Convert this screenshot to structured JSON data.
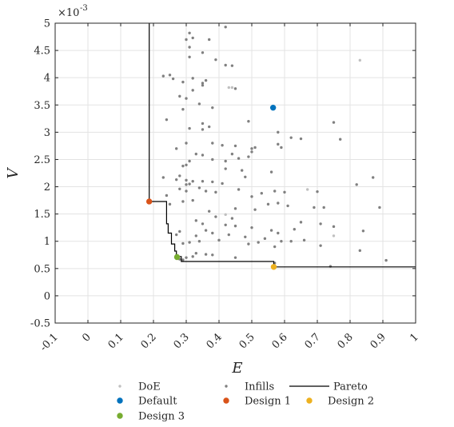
{
  "chart_data": {
    "type": "scatter",
    "xlabel": "E",
    "ylabel": "V",
    "y_multiplier": "×10",
    "y_exponent": "-3",
    "xlim": [
      -0.1,
      1.0
    ],
    "ylim": [
      -0.5,
      5.0
    ],
    "x_ticks": [
      -0.1,
      0,
      0.1,
      0.2,
      0.3,
      0.4,
      0.5,
      0.6,
      0.7,
      0.8,
      0.9,
      1
    ],
    "x_tick_labels": [
      "-0.1",
      "0",
      "0.1",
      "0.2",
      "0.3",
      "0.4",
      "0.5",
      "0.6",
      "0.7",
      "0.8",
      "0.9",
      "1"
    ],
    "y_ticks": [
      -0.5,
      0,
      0.5,
      1,
      1.5,
      2,
      2.5,
      3,
      3.5,
      4,
      4.5,
      5
    ],
    "y_tick_labels": [
      "-0.5",
      "0",
      "0.5",
      "1",
      "1.5",
      "2",
      "2.5",
      "3",
      "3.5",
      "4",
      "4.5",
      "5"
    ],
    "grid": true,
    "legend_position": "bottom",
    "legend": [
      {
        "label": "DoE",
        "marker": "dot-small",
        "color": "#c0c0c0"
      },
      {
        "label": "Infills",
        "marker": "dot-small",
        "color": "#808080"
      },
      {
        "label": "Pareto",
        "marker": "line",
        "color": "#000000"
      },
      {
        "label": "Default",
        "marker": "dot",
        "color": "#0072BD"
      },
      {
        "label": "Design 1",
        "marker": "dot",
        "color": "#D95319"
      },
      {
        "label": "Design 2",
        "marker": "dot",
        "color": "#EDB120"
      },
      {
        "label": "Design 3",
        "marker": "dot",
        "color": "#77AC30"
      }
    ],
    "series": [
      {
        "name": "DoE",
        "color": "#c0c0c0",
        "points": [
          [
            0.43,
            3.82
          ],
          [
            0.42,
            1.49
          ],
          [
            0.67,
            1.95
          ],
          [
            0.83,
            4.32
          ],
          [
            0.75,
            1.1
          ],
          [
            0.44,
            3.82
          ]
        ]
      },
      {
        "name": "Infills",
        "color": "#808080",
        "points": [
          [
            0.42,
            4.93
          ],
          [
            0.31,
            4.82
          ],
          [
            0.3,
            4.7
          ],
          [
            0.32,
            4.73
          ],
          [
            0.37,
            4.7
          ],
          [
            0.31,
            4.56
          ],
          [
            0.35,
            4.46
          ],
          [
            0.31,
            4.38
          ],
          [
            0.39,
            4.33
          ],
          [
            0.42,
            4.23
          ],
          [
            0.44,
            4.22
          ],
          [
            0.25,
            4.05
          ],
          [
            0.26,
            3.98
          ],
          [
            0.23,
            4.03
          ],
          [
            0.32,
            3.99
          ],
          [
            0.36,
            3.95
          ],
          [
            0.35,
            3.86
          ],
          [
            0.35,
            3.9
          ],
          [
            0.29,
            3.92
          ],
          [
            0.32,
            3.77
          ],
          [
            0.45,
            3.8
          ],
          [
            0.28,
            3.66
          ],
          [
            0.3,
            3.62
          ],
          [
            0.34,
            3.52
          ],
          [
            0.38,
            3.45
          ],
          [
            0.29,
            3.42
          ],
          [
            0.24,
            3.23
          ],
          [
            0.35,
            3.16
          ],
          [
            0.37,
            3.1
          ],
          [
            0.31,
            3.07
          ],
          [
            0.35,
            3.05
          ],
          [
            0.49,
            3.2
          ],
          [
            0.58,
            3.0
          ],
          [
            0.75,
            3.18
          ],
          [
            0.62,
            2.9
          ],
          [
            0.65,
            2.88
          ],
          [
            0.77,
            2.87
          ],
          [
            0.58,
            2.78
          ],
          [
            0.59,
            2.72
          ],
          [
            0.51,
            2.72
          ],
          [
            0.45,
            2.75
          ],
          [
            0.38,
            2.8
          ],
          [
            0.41,
            2.76
          ],
          [
            0.3,
            2.8
          ],
          [
            0.27,
            2.7
          ],
          [
            0.33,
            2.6
          ],
          [
            0.35,
            2.58
          ],
          [
            0.44,
            2.6
          ],
          [
            0.5,
            2.64
          ],
          [
            0.5,
            2.7
          ],
          [
            0.49,
            2.55
          ],
          [
            0.38,
            2.5
          ],
          [
            0.42,
            2.47
          ],
          [
            0.46,
            2.52
          ],
          [
            0.31,
            2.47
          ],
          [
            0.3,
            2.4
          ],
          [
            0.29,
            2.38
          ],
          [
            0.42,
            2.33
          ],
          [
            0.47,
            2.3
          ],
          [
            0.56,
            2.27
          ],
          [
            0.48,
            2.18
          ],
          [
            0.28,
            2.2
          ],
          [
            0.3,
            2.12
          ],
          [
            0.32,
            2.1
          ],
          [
            0.35,
            2.1
          ],
          [
            0.38,
            2.09
          ],
          [
            0.41,
            2.06
          ],
          [
            0.3,
            2.04
          ],
          [
            0.31,
            2.05
          ],
          [
            0.27,
            2.13
          ],
          [
            0.23,
            2.17
          ],
          [
            0.34,
            1.98
          ],
          [
            0.28,
            1.96
          ],
          [
            0.3,
            1.92
          ],
          [
            0.36,
            1.92
          ],
          [
            0.39,
            1.9
          ],
          [
            0.46,
            1.95
          ],
          [
            0.57,
            1.92
          ],
          [
            0.6,
            1.9
          ],
          [
            0.5,
            1.82
          ],
          [
            0.53,
            1.88
          ],
          [
            0.58,
            1.7
          ],
          [
            0.55,
            1.68
          ],
          [
            0.61,
            1.65
          ],
          [
            0.45,
            1.6
          ],
          [
            0.51,
            1.58
          ],
          [
            0.69,
            1.62
          ],
          [
            0.82,
            2.04
          ],
          [
            0.87,
            2.17
          ],
          [
            0.89,
            1.62
          ],
          [
            0.24,
            1.84
          ],
          [
            0.25,
            1.68
          ],
          [
            0.29,
            1.73
          ],
          [
            0.32,
            1.75
          ],
          [
            0.37,
            1.55
          ],
          [
            0.39,
            1.45
          ],
          [
            0.44,
            1.42
          ],
          [
            0.33,
            1.38
          ],
          [
            0.35,
            1.32
          ],
          [
            0.42,
            1.3
          ],
          [
            0.45,
            1.28
          ],
          [
            0.5,
            1.25
          ],
          [
            0.56,
            1.2
          ],
          [
            0.58,
            1.15
          ],
          [
            0.63,
            1.22
          ],
          [
            0.65,
            1.35
          ],
          [
            0.7,
            1.91
          ],
          [
            0.72,
            1.62
          ],
          [
            0.71,
            1.32
          ],
          [
            0.75,
            1.27
          ],
          [
            0.84,
            1.19
          ],
          [
            0.36,
            1.2
          ],
          [
            0.28,
            1.18
          ],
          [
            0.27,
            1.12
          ],
          [
            0.33,
            1.1
          ],
          [
            0.38,
            1.15
          ],
          [
            0.43,
            1.12
          ],
          [
            0.48,
            1.08
          ],
          [
            0.54,
            1.05
          ],
          [
            0.59,
            1.0
          ],
          [
            0.62,
            1.0
          ],
          [
            0.66,
            1.02
          ],
          [
            0.71,
            0.92
          ],
          [
            0.83,
            0.83
          ],
          [
            0.29,
            0.96
          ],
          [
            0.31,
            0.98
          ],
          [
            0.34,
            1.0
          ],
          [
            0.4,
            1.02
          ],
          [
            0.49,
            0.95
          ],
          [
            0.52,
            0.98
          ],
          [
            0.57,
            0.9
          ],
          [
            0.27,
            0.74
          ],
          [
            0.3,
            0.7
          ],
          [
            0.33,
            0.78
          ],
          [
            0.36,
            0.76
          ],
          [
            0.45,
            0.7
          ],
          [
            0.57,
            0.6
          ],
          [
            0.74,
            0.54
          ],
          [
            0.91,
            0.65
          ],
          [
            0.28,
            0.67
          ],
          [
            0.29,
            0.66
          ],
          [
            0.32,
            0.72
          ],
          [
            0.38,
            0.75
          ]
        ]
      },
      {
        "name": "Pareto",
        "color": "#000000",
        "points": [
          [
            0.187,
            5.0
          ],
          [
            0.187,
            1.73
          ],
          [
            0.24,
            1.73
          ],
          [
            0.24,
            1.32
          ],
          [
            0.245,
            1.32
          ],
          [
            0.245,
            1.15
          ],
          [
            0.255,
            1.15
          ],
          [
            0.255,
            0.95
          ],
          [
            0.265,
            0.95
          ],
          [
            0.265,
            0.82
          ],
          [
            0.27,
            0.82
          ],
          [
            0.27,
            0.72
          ],
          [
            0.285,
            0.72
          ],
          [
            0.285,
            0.63
          ],
          [
            0.567,
            0.63
          ],
          [
            0.567,
            0.53
          ],
          [
            1.0,
            0.53
          ]
        ]
      },
      {
        "name": "Default",
        "color": "#0072BD",
        "points": [
          [
            0.565,
            3.45
          ]
        ]
      },
      {
        "name": "Design 1",
        "color": "#D95319",
        "points": [
          [
            0.187,
            1.73
          ]
        ]
      },
      {
        "name": "Design 2",
        "color": "#EDB120",
        "points": [
          [
            0.567,
            0.53
          ]
        ]
      },
      {
        "name": "Design 3",
        "color": "#77AC30",
        "points": [
          [
            0.272,
            0.71
          ]
        ]
      }
    ]
  }
}
